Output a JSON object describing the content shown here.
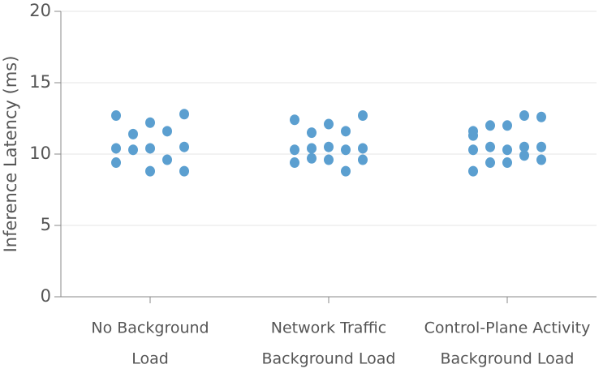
{
  "chart_data": {
    "type": "strip",
    "y_label": "Inference Latency (ms)",
    "categories": [
      [
        "No Background",
        "Load"
      ],
      [
        "Network Traffic",
        "Background Load"
      ],
      [
        "Control-Plane Activity",
        "Background Load"
      ]
    ],
    "values": [
      [
        12.7,
        12.2,
        12.8,
        11.4,
        11.6,
        10.4,
        10.4,
        10.5,
        10.3,
        9.6,
        9.4,
        8.8,
        8.8
      ],
      [
        12.4,
        12.1,
        12.7,
        11.5,
        11.6,
        10.3,
        10.5,
        10.4,
        10.4,
        10.3,
        9.4,
        9.6,
        9.6,
        9.7,
        8.8
      ],
      [
        11.3,
        12.0,
        12.6,
        12.0,
        12.7,
        11.6,
        10.3,
        10.5,
        10.5,
        10.5,
        10.3,
        9.4,
        9.6,
        9.4,
        9.9,
        8.8
      ]
    ],
    "color": "#5b9fd0",
    "ylim": [
      0,
      20
    ],
    "yticks": [
      0,
      5,
      10,
      15,
      20
    ],
    "grid": true
  }
}
